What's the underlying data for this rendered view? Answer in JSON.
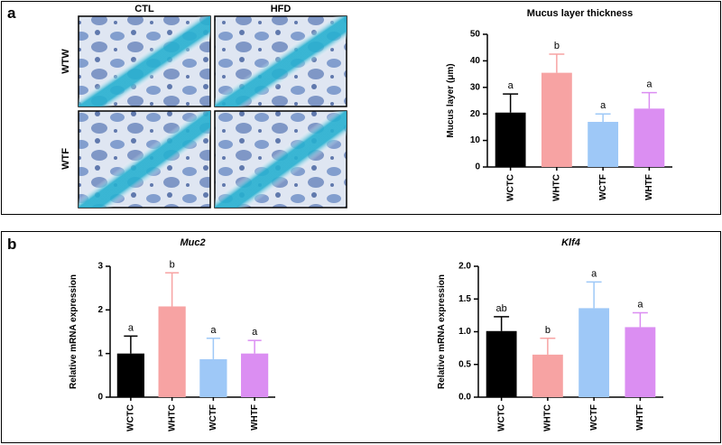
{
  "panel_labels": [
    "a",
    "b"
  ],
  "histology": {
    "columns": [
      "CTL",
      "HFD"
    ],
    "rows": [
      "WTW",
      "WTF"
    ]
  },
  "chart_data": [
    {
      "type": "bar",
      "title": "Mucus layer thickness",
      "y_label": "Mucus layer (μm)",
      "categories": [
        "WCTC",
        "WHTC",
        "WCTF",
        "WHTF"
      ],
      "values": [
        20.5,
        35.5,
        17,
        22
      ],
      "errors": [
        7,
        7,
        3,
        6
      ],
      "letters": [
        "a",
        "b",
        "a",
        "a"
      ],
      "colors": [
        "#000000",
        "#f7a3a3",
        "#9ec8f7",
        "#db8ef2"
      ],
      "ylim": [
        0,
        50
      ],
      "yticks": [
        0,
        10,
        20,
        30,
        40,
        50
      ]
    },
    {
      "type": "bar",
      "title": "Muc2",
      "title_italic": true,
      "y_label": "Relative mRNA expression",
      "categories": [
        "WCTC",
        "WHTC",
        "WCTF",
        "WHTF"
      ],
      "values": [
        1.0,
        2.08,
        0.87,
        1.0
      ],
      "errors": [
        0.4,
        0.77,
        0.48,
        0.3
      ],
      "letters": [
        "a",
        "b",
        "a",
        "a"
      ],
      "colors": [
        "#000000",
        "#f7a3a3",
        "#9ec8f7",
        "#db8ef2"
      ],
      "ylim": [
        0,
        3
      ],
      "yticks": [
        0,
        1,
        2,
        3
      ]
    },
    {
      "type": "bar",
      "title": "Klf4",
      "title_italic": true,
      "y_label": "Relative mRNA expression",
      "categories": [
        "WCTC",
        "WHTC",
        "WCTF",
        "WHTF"
      ],
      "values": [
        1.01,
        0.65,
        1.36,
        1.07
      ],
      "errors": [
        0.22,
        0.25,
        0.4,
        0.22
      ],
      "letters": [
        "ab",
        "b",
        "a",
        "a"
      ],
      "colors": [
        "#000000",
        "#f7a3a3",
        "#9ec8f7",
        "#db8ef2"
      ],
      "ylim": [
        0,
        2
      ],
      "yticks": [
        {
          "value": 0,
          "label": "0.0"
        },
        0.5,
        {
          "value": 1,
          "label": "1.0"
        },
        1.5,
        {
          "value": 2,
          "label": "2.0"
        }
      ]
    }
  ]
}
